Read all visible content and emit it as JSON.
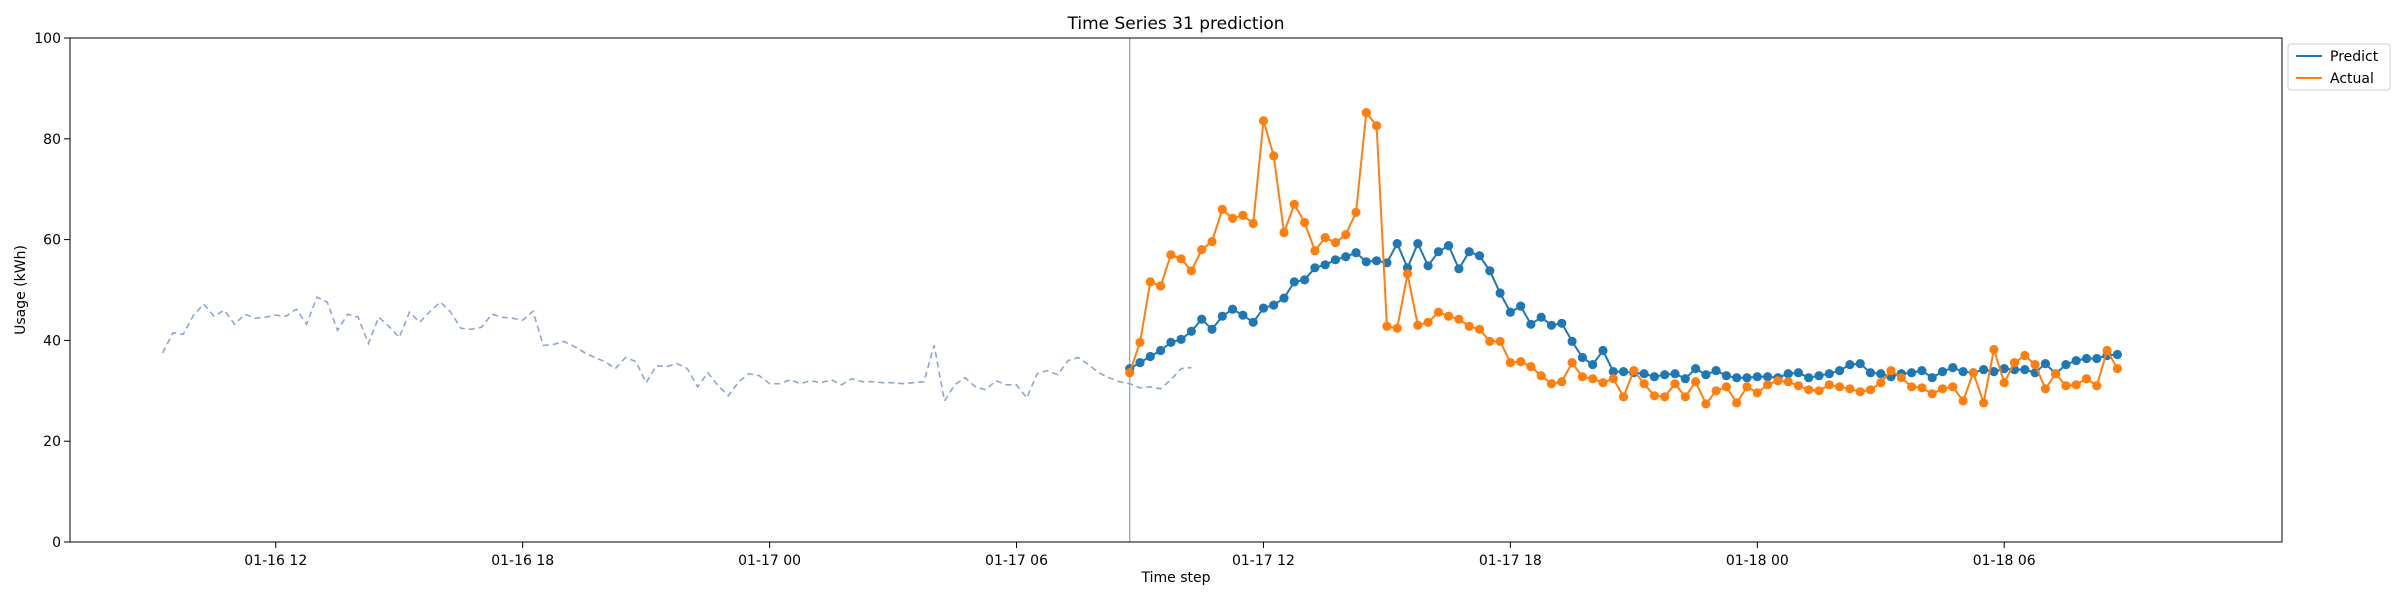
{
  "chart_data": {
    "type": "line",
    "title": "Time Series 31 prediction",
    "xlabel": "Time step",
    "ylabel": "Usage (kWh)",
    "ylim": [
      0,
      100
    ],
    "xlim": [
      "2024-01-16 07:00",
      "2024-01-18 12:45"
    ],
    "grid": false,
    "legend_position": "top-right outside",
    "x_tick_labels": [
      {
        "label": "01-16 12",
        "x": "2024-01-16 12:00"
      },
      {
        "label": "01-16 18",
        "x": "2024-01-16 18:00"
      },
      {
        "label": "01-17 00",
        "x": "2024-01-17 00:00"
      },
      {
        "label": "01-17 06",
        "x": "2024-01-17 06:00"
      },
      {
        "label": "01-17 12",
        "x": "2024-01-17 12:00"
      },
      {
        "label": "01-17 18",
        "x": "2024-01-17 18:00"
      },
      {
        "label": "01-18 00",
        "x": "2024-01-18 00:00"
      },
      {
        "label": "01-18 06",
        "x": "2024-01-18 06:00"
      }
    ],
    "y_ticks": [
      0,
      20,
      40,
      60,
      80,
      100
    ],
    "forecast_start": "2024-01-17 08:45",
    "step_minutes": 15,
    "history": {
      "start": "2024-01-16 09:15",
      "color": "#8fa6c9",
      "style": "dashed",
      "values": [
        37.5,
        41.5,
        41.2,
        45.0,
        47.2,
        44.8,
        46.0,
        43.2,
        45.2,
        44.4,
        44.6,
        45.0,
        44.8,
        46.2,
        43.2,
        48.6,
        47.6,
        42.0,
        45.2,
        44.6,
        39.4,
        44.6,
        42.8,
        40.6,
        45.6,
        43.6,
        45.8,
        47.6,
        45.6,
        42.4,
        42.2,
        42.6,
        45.2,
        44.6,
        44.4,
        44.0,
        45.8,
        39.0,
        39.2,
        39.8,
        38.8,
        37.6,
        36.6,
        35.8,
        34.4,
        36.6,
        35.8,
        31.6,
        35.0,
        34.8,
        35.4,
        34.4,
        30.8,
        33.6,
        31.0,
        29.0,
        31.8,
        33.4,
        33.0,
        31.4,
        31.4,
        32.2,
        31.4,
        32.0,
        31.6,
        32.2,
        31.2,
        32.4,
        31.8,
        31.8,
        31.6,
        31.6,
        31.4,
        31.6,
        31.8,
        39.0,
        28.0,
        31.2,
        32.6,
        30.8,
        30.2,
        32.0,
        31.2,
        31.2,
        28.6,
        33.4,
        34.0,
        33.2,
        36.0,
        36.6,
        35.2,
        33.6,
        32.6,
        31.8,
        31.4,
        30.6,
        30.8,
        30.4,
        32.2,
        34.4,
        34.6
      ]
    },
    "series": [
      {
        "name": "Predict",
        "color": "#1f77b4",
        "start": "2024-01-17 08:45",
        "values": [
          34.4,
          35.6,
          36.8,
          38.0,
          39.6,
          40.2,
          41.8,
          44.2,
          42.2,
          44.8,
          46.2,
          45.0,
          43.6,
          46.4,
          47.0,
          48.4,
          51.6,
          52.0,
          54.4,
          55.0,
          56.0,
          56.6,
          57.4,
          55.6,
          55.8,
          55.4,
          59.2,
          54.4,
          59.2,
          54.8,
          57.6,
          58.8,
          54.2,
          57.6,
          56.8,
          53.8,
          49.4,
          45.6,
          46.8,
          43.2,
          44.6,
          43.0,
          43.4,
          39.8,
          36.6,
          35.2,
          38.0,
          33.8,
          33.8,
          33.6,
          33.4,
          32.8,
          33.2,
          33.4,
          32.4,
          34.4,
          33.2,
          34.0,
          33.0,
          32.6,
          32.6,
          32.8,
          32.8,
          32.6,
          33.4,
          33.6,
          32.6,
          33.0,
          33.4,
          34.0,
          35.2,
          35.4,
          33.6,
          33.4,
          32.8,
          33.4,
          33.6,
          34.0,
          32.6,
          33.8,
          34.6,
          33.8,
          33.6,
          34.2,
          33.8,
          34.4,
          34.2,
          34.2,
          33.6,
          35.4,
          33.4,
          35.2,
          36.0,
          36.4,
          36.4,
          37.0,
          37.2
        ]
      },
      {
        "name": "Actual",
        "color": "#ff7f0e",
        "start": "2024-01-17 08:45",
        "values": [
          33.6,
          39.6,
          51.6,
          50.8,
          57.0,
          56.2,
          53.8,
          58.0,
          59.6,
          66.0,
          64.2,
          64.8,
          63.2,
          83.6,
          76.6,
          61.4,
          67.0,
          63.4,
          57.8,
          60.4,
          59.4,
          61.0,
          65.4,
          85.2,
          82.6,
          42.8,
          42.4,
          53.2,
          43.0,
          43.6,
          45.6,
          44.8,
          44.2,
          42.8,
          42.2,
          39.8,
          39.8,
          35.6,
          35.8,
          34.8,
          33.0,
          31.4,
          31.8,
          35.6,
          32.8,
          32.4,
          31.6,
          32.4,
          28.8,
          34.0,
          31.4,
          29.0,
          28.8,
          31.4,
          28.8,
          31.8,
          27.4,
          30.0,
          30.8,
          27.6,
          30.8,
          29.6,
          31.2,
          32.0,
          31.8,
          31.0,
          30.2,
          30.0,
          31.2,
          30.8,
          30.4,
          29.8,
          30.2,
          31.6,
          34.0,
          32.6,
          30.8,
          30.6,
          29.4,
          30.4,
          30.8,
          28.0,
          33.6,
          27.6,
          38.2,
          31.6,
          35.6,
          37.0,
          35.2,
          30.4,
          33.4,
          31.0,
          31.2,
          32.4,
          31.0,
          38.0,
          34.4
        ]
      }
    ]
  }
}
